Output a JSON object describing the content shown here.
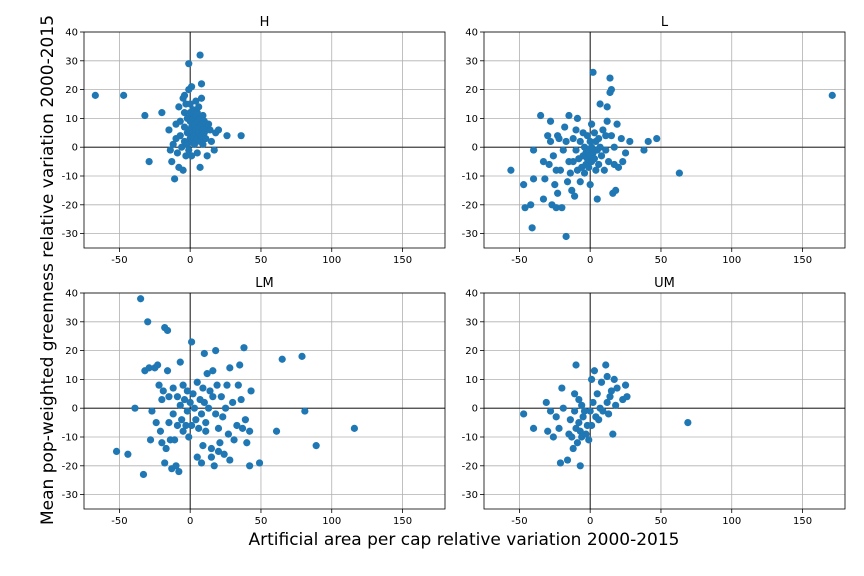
{
  "figure": {
    "xlabel": "Artificial area per cap relative variation 2000-2015",
    "ylabel": "Mean pop-weighted greenness relative variation 2000-2015"
  },
  "chart_data": [
    {
      "type": "scatter",
      "title": "H",
      "xlim": [
        -75,
        180
      ],
      "ylim": [
        -35,
        40
      ],
      "xticks": [
        -50,
        0,
        50,
        100,
        150
      ],
      "yticks": [
        -30,
        -20,
        -10,
        0,
        10,
        20,
        30,
        40
      ],
      "grid": true,
      "color": "#1f77b4",
      "points": [
        [
          -67,
          18
        ],
        [
          -47,
          18
        ],
        [
          -32,
          11
        ],
        [
          -29,
          -5
        ],
        [
          -20,
          12
        ],
        [
          -15,
          6
        ],
        [
          -14,
          -1
        ],
        [
          -13,
          -5
        ],
        [
          -12,
          1
        ],
        [
          -11,
          -11
        ],
        [
          -10,
          8
        ],
        [
          -10,
          3
        ],
        [
          -9,
          -2
        ],
        [
          -8,
          -7
        ],
        [
          -8,
          14
        ],
        [
          -7,
          9
        ],
        [
          -7,
          4
        ],
        [
          -6,
          0
        ],
        [
          -5,
          -8
        ],
        [
          -5,
          17
        ],
        [
          -4,
          18
        ],
        [
          -4,
          12
        ],
        [
          -4,
          7
        ],
        [
          -4,
          2
        ],
        [
          -3,
          -3
        ],
        [
          -3,
          15
        ],
        [
          -2,
          10
        ],
        [
          -2,
          5
        ],
        [
          -2,
          1
        ],
        [
          -1,
          29
        ],
        [
          -1,
          20
        ],
        [
          -1,
          -1
        ],
        [
          0,
          15
        ],
        [
          0,
          12
        ],
        [
          0,
          9
        ],
        [
          0,
          6
        ],
        [
          0,
          3
        ],
        [
          1,
          21
        ],
        [
          1,
          7
        ],
        [
          1,
          2
        ],
        [
          1,
          -3
        ],
        [
          2,
          13
        ],
        [
          2,
          10
        ],
        [
          2,
          5
        ],
        [
          3,
          8
        ],
        [
          3,
          4
        ],
        [
          3,
          1
        ],
        [
          4,
          16
        ],
        [
          4,
          11
        ],
        [
          4,
          6
        ],
        [
          5,
          12
        ],
        [
          5,
          9
        ],
        [
          5,
          3
        ],
        [
          5,
          -2
        ],
        [
          6,
          14
        ],
        [
          6,
          7
        ],
        [
          6,
          5
        ],
        [
          7,
          32
        ],
        [
          7,
          10
        ],
        [
          7,
          2
        ],
        [
          7,
          -7
        ],
        [
          8,
          22
        ],
        [
          8,
          17
        ],
        [
          8,
          8
        ],
        [
          8,
          4
        ],
        [
          9,
          11
        ],
        [
          9,
          6
        ],
        [
          9,
          1
        ],
        [
          10,
          9
        ],
        [
          10,
          5
        ],
        [
          11,
          3
        ],
        [
          12,
          7
        ],
        [
          12,
          -3
        ],
        [
          13,
          8
        ],
        [
          14,
          6
        ],
        [
          15,
          2
        ],
        [
          17,
          -1
        ],
        [
          18,
          5
        ],
        [
          20,
          6
        ],
        [
          26,
          4
        ],
        [
          36,
          4
        ]
      ]
    },
    {
      "type": "scatter",
      "title": "L",
      "xlim": [
        -75,
        180
      ],
      "ylim": [
        -35,
        40
      ],
      "xticks": [
        -50,
        0,
        50,
        100,
        150
      ],
      "yticks": [
        -30,
        -20,
        -10,
        0,
        10,
        20,
        30,
        40
      ],
      "grid": true,
      "color": "#1f77b4",
      "points": [
        [
          -56,
          -8
        ],
        [
          -47,
          -13
        ],
        [
          -46,
          -21
        ],
        [
          -42,
          -20
        ],
        [
          -41,
          -28
        ],
        [
          -40,
          -11
        ],
        [
          -40,
          -1
        ],
        [
          -35,
          11
        ],
        [
          -33,
          -5
        ],
        [
          -33,
          -18
        ],
        [
          -32,
          -11
        ],
        [
          -30,
          4
        ],
        [
          -29,
          -6
        ],
        [
          -28,
          9
        ],
        [
          -28,
          2
        ],
        [
          -27,
          -20
        ],
        [
          -26,
          -3
        ],
        [
          -25,
          -13
        ],
        [
          -24,
          -21
        ],
        [
          -24,
          -8
        ],
        [
          -23,
          4
        ],
        [
          -23,
          -16
        ],
        [
          -22,
          3
        ],
        [
          -21,
          -8
        ],
        [
          -20,
          -21
        ],
        [
          -19,
          -1
        ],
        [
          -18,
          7
        ],
        [
          -17,
          -31
        ],
        [
          -17,
          2
        ],
        [
          -16,
          -12
        ],
        [
          -15,
          11
        ],
        [
          -15,
          -5
        ],
        [
          -14,
          -9
        ],
        [
          -13,
          -15
        ],
        [
          -12,
          3
        ],
        [
          -12,
          -5
        ],
        [
          -11,
          -17
        ],
        [
          -10,
          6
        ],
        [
          -10,
          -1
        ],
        [
          -9,
          10
        ],
        [
          -9,
          -8
        ],
        [
          -8,
          -4
        ],
        [
          -7,
          -12
        ],
        [
          -7,
          2
        ],
        [
          -6,
          -7
        ],
        [
          -5,
          5
        ],
        [
          -5,
          -3
        ],
        [
          -4,
          0
        ],
        [
          -4,
          -9
        ],
        [
          -3,
          -6
        ],
        [
          -3,
          -2
        ],
        [
          -2,
          4
        ],
        [
          -2,
          -4
        ],
        [
          -1,
          -1
        ],
        [
          -1,
          -7
        ],
        [
          0,
          2
        ],
        [
          0,
          -3
        ],
        [
          0,
          -13
        ],
        [
          1,
          8
        ],
        [
          1,
          0
        ],
        [
          1,
          -5
        ],
        [
          2,
          26
        ],
        [
          2,
          -2
        ],
        [
          3,
          5
        ],
        [
          3,
          -4
        ],
        [
          4,
          2
        ],
        [
          4,
          -8
        ],
        [
          5,
          -1
        ],
        [
          5,
          -18
        ],
        [
          6,
          3
        ],
        [
          6,
          -6
        ],
        [
          7,
          15
        ],
        [
          7,
          0
        ],
        [
          8,
          -3
        ],
        [
          9,
          6
        ],
        [
          10,
          -8
        ],
        [
          11,
          4
        ],
        [
          11,
          -1
        ],
        [
          12,
          9
        ],
        [
          12,
          14
        ],
        [
          13,
          -5
        ],
        [
          14,
          19
        ],
        [
          14,
          24
        ],
        [
          15,
          20
        ],
        [
          15,
          4
        ],
        [
          16,
          -16
        ],
        [
          17,
          0
        ],
        [
          17,
          -6
        ],
        [
          18,
          -15
        ],
        [
          19,
          8
        ],
        [
          20,
          -7
        ],
        [
          22,
          3
        ],
        [
          23,
          -5
        ],
        [
          25,
          -2
        ],
        [
          28,
          2
        ],
        [
          38,
          -1
        ],
        [
          41,
          2
        ],
        [
          47,
          3
        ],
        [
          63,
          -9
        ],
        [
          171,
          18
        ]
      ]
    },
    {
      "type": "scatter",
      "title": "LM",
      "xlim": [
        -75,
        180
      ],
      "ylim": [
        -35,
        40
      ],
      "xticks": [
        -50,
        0,
        50,
        100,
        150
      ],
      "yticks": [
        -30,
        -20,
        -10,
        0,
        10,
        20,
        30,
        40
      ],
      "grid": true,
      "color": "#1f77b4",
      "points": [
        [
          -52,
          -15
        ],
        [
          -44,
          -16
        ],
        [
          -39,
          0
        ],
        [
          -35,
          38
        ],
        [
          -33,
          -23
        ],
        [
          -32,
          13
        ],
        [
          -30,
          30
        ],
        [
          -29,
          14
        ],
        [
          -28,
          -11
        ],
        [
          -27,
          -1
        ],
        [
          -25,
          14
        ],
        [
          -24,
          -5
        ],
        [
          -23,
          15
        ],
        [
          -22,
          8
        ],
        [
          -21,
          -8
        ],
        [
          -20,
          -12
        ],
        [
          -20,
          3
        ],
        [
          -19,
          6
        ],
        [
          -18,
          28
        ],
        [
          -18,
          -19
        ],
        [
          -17,
          -14
        ],
        [
          -16,
          27
        ],
        [
          -16,
          13
        ],
        [
          -15,
          4
        ],
        [
          -15,
          -5
        ],
        [
          -14,
          -11
        ],
        [
          -13,
          -21
        ],
        [
          -12,
          7
        ],
        [
          -12,
          -2
        ],
        [
          -11,
          -11
        ],
        [
          -10,
          -20
        ],
        [
          -9,
          4
        ],
        [
          -9,
          -6
        ],
        [
          -8,
          -22
        ],
        [
          -7,
          16
        ],
        [
          -7,
          1
        ],
        [
          -6,
          -4
        ],
        [
          -5,
          8
        ],
        [
          -5,
          -8
        ],
        [
          -4,
          3
        ],
        [
          -3,
          -6
        ],
        [
          -2,
          6
        ],
        [
          -2,
          -1
        ],
        [
          -1,
          -10
        ],
        [
          0,
          2
        ],
        [
          1,
          23
        ],
        [
          1,
          -6
        ],
        [
          2,
          5
        ],
        [
          3,
          0
        ],
        [
          4,
          -4
        ],
        [
          5,
          -17
        ],
        [
          5,
          9
        ],
        [
          6,
          -7
        ],
        [
          7,
          3
        ],
        [
          8,
          -2
        ],
        [
          8,
          -19
        ],
        [
          9,
          7
        ],
        [
          9,
          -13
        ],
        [
          10,
          19
        ],
        [
          10,
          2
        ],
        [
          11,
          -8
        ],
        [
          11,
          -5
        ],
        [
          12,
          12
        ],
        [
          13,
          0
        ],
        [
          14,
          6
        ],
        [
          15,
          -14
        ],
        [
          15,
          -17
        ],
        [
          16,
          13
        ],
        [
          16,
          4
        ],
        [
          17,
          -20
        ],
        [
          18,
          -2
        ],
        [
          18,
          20
        ],
        [
          19,
          8
        ],
        [
          20,
          -15
        ],
        [
          20,
          -7
        ],
        [
          21,
          -12
        ],
        [
          22,
          4
        ],
        [
          23,
          -3
        ],
        [
          24,
          -16
        ],
        [
          25,
          0
        ],
        [
          26,
          8
        ],
        [
          27,
          -9
        ],
        [
          28,
          14
        ],
        [
          28,
          -18
        ],
        [
          30,
          2
        ],
        [
          31,
          -11
        ],
        [
          33,
          -6
        ],
        [
          34,
          8
        ],
        [
          35,
          15
        ],
        [
          36,
          3
        ],
        [
          37,
          -7
        ],
        [
          38,
          21
        ],
        [
          39,
          -4
        ],
        [
          40,
          -12
        ],
        [
          42,
          -20
        ],
        [
          42,
          -8
        ],
        [
          43,
          6
        ],
        [
          49,
          -19
        ],
        [
          61,
          -8
        ],
        [
          65,
          17
        ],
        [
          79,
          18
        ],
        [
          81,
          -1
        ],
        [
          89,
          -13
        ],
        [
          116,
          -7
        ]
      ]
    },
    {
      "type": "scatter",
      "title": "UM",
      "xlim": [
        -75,
        180
      ],
      "ylim": [
        -35,
        40
      ],
      "xticks": [
        -50,
        0,
        50,
        100,
        150
      ],
      "yticks": [
        -30,
        -20,
        -10,
        0,
        10,
        20,
        30,
        40
      ],
      "grid": true,
      "color": "#1f77b4",
      "points": [
        [
          -47,
          -2
        ],
        [
          -40,
          -7
        ],
        [
          -31,
          2
        ],
        [
          -30,
          -8
        ],
        [
          -28,
          -1
        ],
        [
          -26,
          -10
        ],
        [
          -24,
          -3
        ],
        [
          -22,
          -7
        ],
        [
          -21,
          -19
        ],
        [
          -20,
          7
        ],
        [
          -19,
          0
        ],
        [
          -16,
          -18
        ],
        [
          -15,
          -9
        ],
        [
          -14,
          -4
        ],
        [
          -13,
          -10
        ],
        [
          -12,
          -14
        ],
        [
          -11,
          5
        ],
        [
          -11,
          -1
        ],
        [
          -10,
          15
        ],
        [
          -10,
          -7
        ],
        [
          -9,
          -12
        ],
        [
          -8,
          3
        ],
        [
          -8,
          -5
        ],
        [
          -7,
          -20
        ],
        [
          -7,
          -8
        ],
        [
          -6,
          1
        ],
        [
          -6,
          -10
        ],
        [
          -5,
          -3
        ],
        [
          -4,
          -1
        ],
        [
          -3,
          -9
        ],
        [
          -2,
          -6
        ],
        [
          -1,
          -11
        ],
        [
          0,
          -1
        ],
        [
          1,
          10
        ],
        [
          1,
          -6
        ],
        [
          2,
          2
        ],
        [
          3,
          13
        ],
        [
          4,
          -3
        ],
        [
          5,
          5
        ],
        [
          6,
          -4
        ],
        [
          7,
          0
        ],
        [
          8,
          9
        ],
        [
          9,
          -1
        ],
        [
          11,
          15
        ],
        [
          12,
          11
        ],
        [
          12,
          2
        ],
        [
          13,
          -2
        ],
        [
          14,
          4
        ],
        [
          15,
          6
        ],
        [
          16,
          -9
        ],
        [
          17,
          10
        ],
        [
          18,
          1
        ],
        [
          19,
          7
        ],
        [
          23,
          3
        ],
        [
          25,
          8
        ],
        [
          26,
          4
        ],
        [
          69,
          -5
        ]
      ]
    }
  ]
}
